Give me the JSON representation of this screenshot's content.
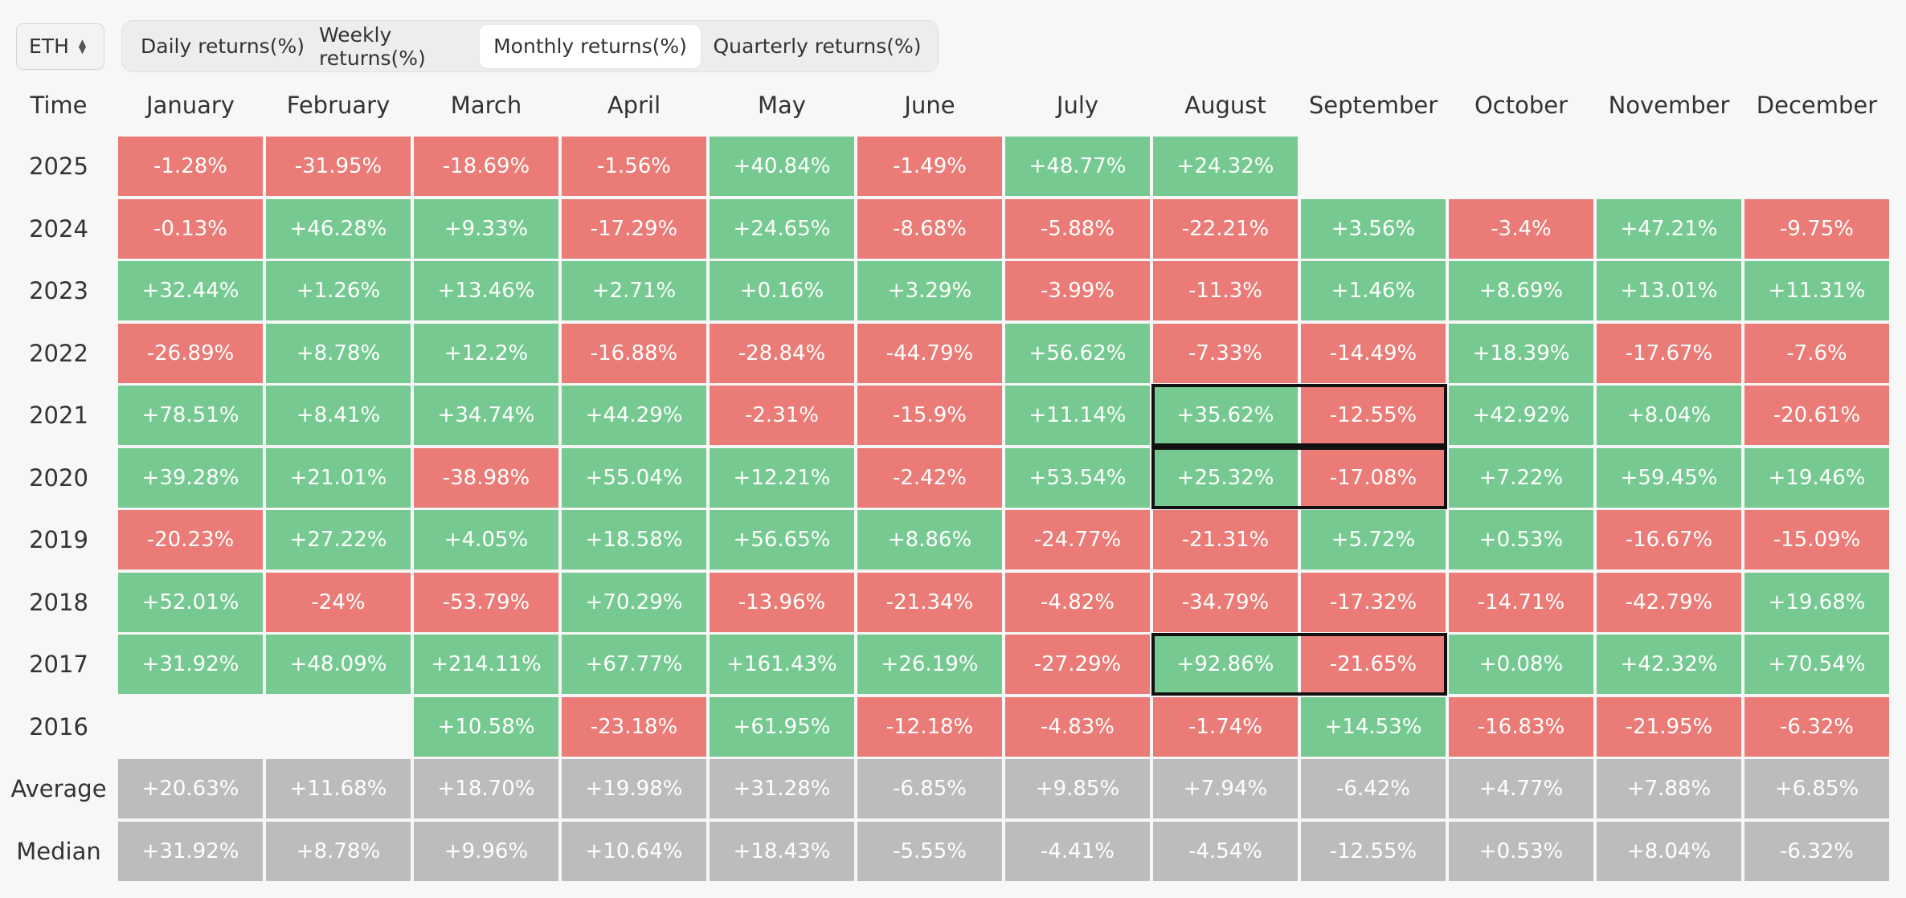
{
  "toolbar": {
    "asset": "ETH",
    "asset_icon": "chevron-up-down-icon",
    "tabs": [
      {
        "label": "Daily returns(%)",
        "active": false
      },
      {
        "label": "Weekly returns(%)",
        "active": false
      },
      {
        "label": "Monthly returns(%)",
        "active": true
      },
      {
        "label": "Quarterly returns(%)",
        "active": false
      }
    ]
  },
  "table": {
    "corner_label": "Time",
    "months": [
      "January",
      "February",
      "March",
      "April",
      "May",
      "June",
      "July",
      "August",
      "September",
      "October",
      "November",
      "December"
    ],
    "rows": [
      {
        "label": "2025",
        "values": [
          "-1.28%",
          "-31.95%",
          "-18.69%",
          "-1.56%",
          "+40.84%",
          "-1.49%",
          "+48.77%",
          "+24.32%",
          "",
          "",
          "",
          ""
        ]
      },
      {
        "label": "2024",
        "values": [
          "-0.13%",
          "+46.28%",
          "+9.33%",
          "-17.29%",
          "+24.65%",
          "-8.68%",
          "-5.88%",
          "-22.21%",
          "+3.56%",
          "-3.4%",
          "+47.21%",
          "-9.75%"
        ]
      },
      {
        "label": "2023",
        "values": [
          "+32.44%",
          "+1.26%",
          "+13.46%",
          "+2.71%",
          "+0.16%",
          "+3.29%",
          "-3.99%",
          "-11.3%",
          "+1.46%",
          "+8.69%",
          "+13.01%",
          "+11.31%"
        ]
      },
      {
        "label": "2022",
        "values": [
          "-26.89%",
          "+8.78%",
          "+12.2%",
          "-16.88%",
          "-28.84%",
          "-44.79%",
          "+56.62%",
          "-7.33%",
          "-14.49%",
          "+18.39%",
          "-17.67%",
          "-7.6%"
        ]
      },
      {
        "label": "2021",
        "values": [
          "+78.51%",
          "+8.41%",
          "+34.74%",
          "+44.29%",
          "-2.31%",
          "-15.9%",
          "+11.14%",
          "+35.62%",
          "-12.55%",
          "+42.92%",
          "+8.04%",
          "-20.61%"
        ]
      },
      {
        "label": "2020",
        "values": [
          "+39.28%",
          "+21.01%",
          "-38.98%",
          "+55.04%",
          "+12.21%",
          "-2.42%",
          "+53.54%",
          "+25.32%",
          "-17.08%",
          "+7.22%",
          "+59.45%",
          "+19.46%"
        ]
      },
      {
        "label": "2019",
        "values": [
          "-20.23%",
          "+27.22%",
          "+4.05%",
          "+18.58%",
          "+56.65%",
          "+8.86%",
          "-24.77%",
          "-21.31%",
          "+5.72%",
          "+0.53%",
          "-16.67%",
          "-15.09%"
        ]
      },
      {
        "label": "2018",
        "values": [
          "+52.01%",
          "-24%",
          "-53.79%",
          "+70.29%",
          "-13.96%",
          "-21.34%",
          "-4.82%",
          "-34.79%",
          "-17.32%",
          "-14.71%",
          "-42.79%",
          "+19.68%"
        ]
      },
      {
        "label": "2017",
        "values": [
          "+31.92%",
          "+48.09%",
          "+214.11%",
          "+67.77%",
          "+161.43%",
          "+26.19%",
          "-27.29%",
          "+92.86%",
          "-21.65%",
          "+0.08%",
          "+42.32%",
          "+70.54%"
        ]
      },
      {
        "label": "2016",
        "values": [
          "",
          "",
          "+10.58%",
          "-23.18%",
          "+61.95%",
          "-12.18%",
          "-4.83%",
          "-1.74%",
          "+14.53%",
          "-16.83%",
          "-21.95%",
          "-6.32%"
        ]
      }
    ],
    "stats": [
      {
        "label": "Average",
        "values": [
          "+20.63%",
          "+11.68%",
          "+18.70%",
          "+19.98%",
          "+31.28%",
          "-6.85%",
          "+9.85%",
          "+7.94%",
          "-6.42%",
          "+4.77%",
          "+7.88%",
          "+6.85%"
        ]
      },
      {
        "label": "Median",
        "values": [
          "+31.92%",
          "+8.78%",
          "+9.96%",
          "+10.64%",
          "+18.43%",
          "-5.55%",
          "-4.41%",
          "-4.54%",
          "-12.55%",
          "+0.53%",
          "+8.04%",
          "-6.32%"
        ]
      }
    ],
    "highlights": [
      {
        "row": "2021",
        "months": [
          "August",
          "September"
        ]
      },
      {
        "row": "2020",
        "months": [
          "August",
          "September"
        ]
      },
      {
        "row": "2017",
        "months": [
          "August",
          "September"
        ]
      }
    ]
  },
  "colors": {
    "positive": "#76ca91",
    "negative": "#ea7b76",
    "stat": "#bcbcbc",
    "highlight_border": "#111111"
  }
}
